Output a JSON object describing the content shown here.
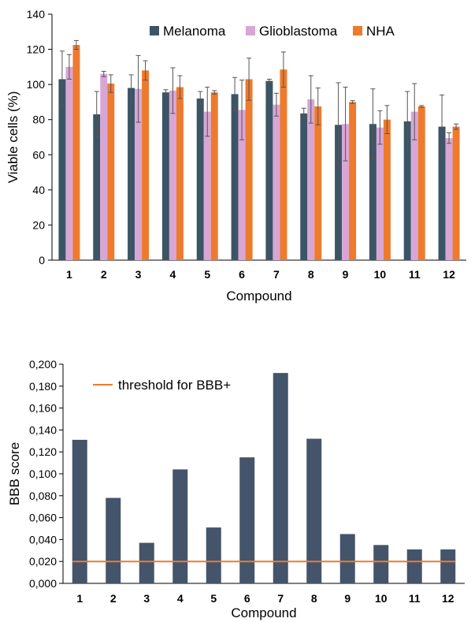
{
  "chart_data": [
    {
      "type": "bar",
      "categories": [
        "1",
        "2",
        "3",
        "4",
        "5",
        "6",
        "7",
        "8",
        "9",
        "10",
        "11",
        "12"
      ],
      "series": [
        {
          "name": "Melanoma",
          "color": "#3b5566",
          "values": [
            103,
            83,
            98,
            95.5,
            92,
            94.5,
            102,
            83.5,
            77,
            77.5,
            79,
            76
          ],
          "errors": [
            16,
            13,
            7.5,
            1.5,
            4,
            9.5,
            1,
            3,
            24,
            20,
            17,
            18
          ]
        },
        {
          "name": "Glioblastoma",
          "color": "#d8a6d6",
          "values": [
            110,
            106,
            97.5,
            96.5,
            84.5,
            85.5,
            88.5,
            91.5,
            77.5,
            75.5,
            84.5,
            69.5
          ],
          "errors": [
            7,
            1.5,
            19,
            13,
            14,
            17,
            6.5,
            13.5,
            21,
            9.5,
            16,
            3
          ]
        },
        {
          "name": "NHA",
          "color": "#ee7a2e",
          "values": [
            122.5,
            100.5,
            108,
            98.5,
            95.5,
            103,
            108.5,
            87.5,
            90,
            80,
            87.5,
            76
          ],
          "errors": [
            2.5,
            5,
            5.5,
            6.5,
            1,
            12,
            10,
            10.5,
            0.8,
            8,
            0.5,
            1.5
          ]
        }
      ],
      "xlabel": "Compound",
      "ylabel": "Viable cells (%)",
      "ylim": [
        0,
        140
      ],
      "yticks": [
        "0",
        "20",
        "40",
        "60",
        "80",
        "100",
        "120",
        "140"
      ],
      "grid": false,
      "legend": "top"
    },
    {
      "type": "bar",
      "categories": [
        "1",
        "2",
        "3",
        "4",
        "5",
        "6",
        "7",
        "8",
        "9",
        "10",
        "11",
        "12"
      ],
      "series": [
        {
          "color": "#44546a",
          "values": [
            0.131,
            0.078,
            0.037,
            0.104,
            0.051,
            0.115,
            0.192,
            0.132,
            0.045,
            0.035,
            0.031,
            0.031
          ]
        }
      ],
      "threshold": {
        "name": "threshold for BBB+",
        "value": 0.02,
        "color": "#ee7a2e"
      },
      "xlabel": "Compound",
      "ylabel": "BBB score",
      "ylim": [
        0,
        0.2
      ],
      "yticks": [
        "0,000",
        "0,020",
        "0,040",
        "0,060",
        "0,080",
        "0,100",
        "0,120",
        "0,140",
        "0,160",
        "0,180",
        "0,200"
      ],
      "grid": false,
      "legend": "top-left"
    }
  ]
}
